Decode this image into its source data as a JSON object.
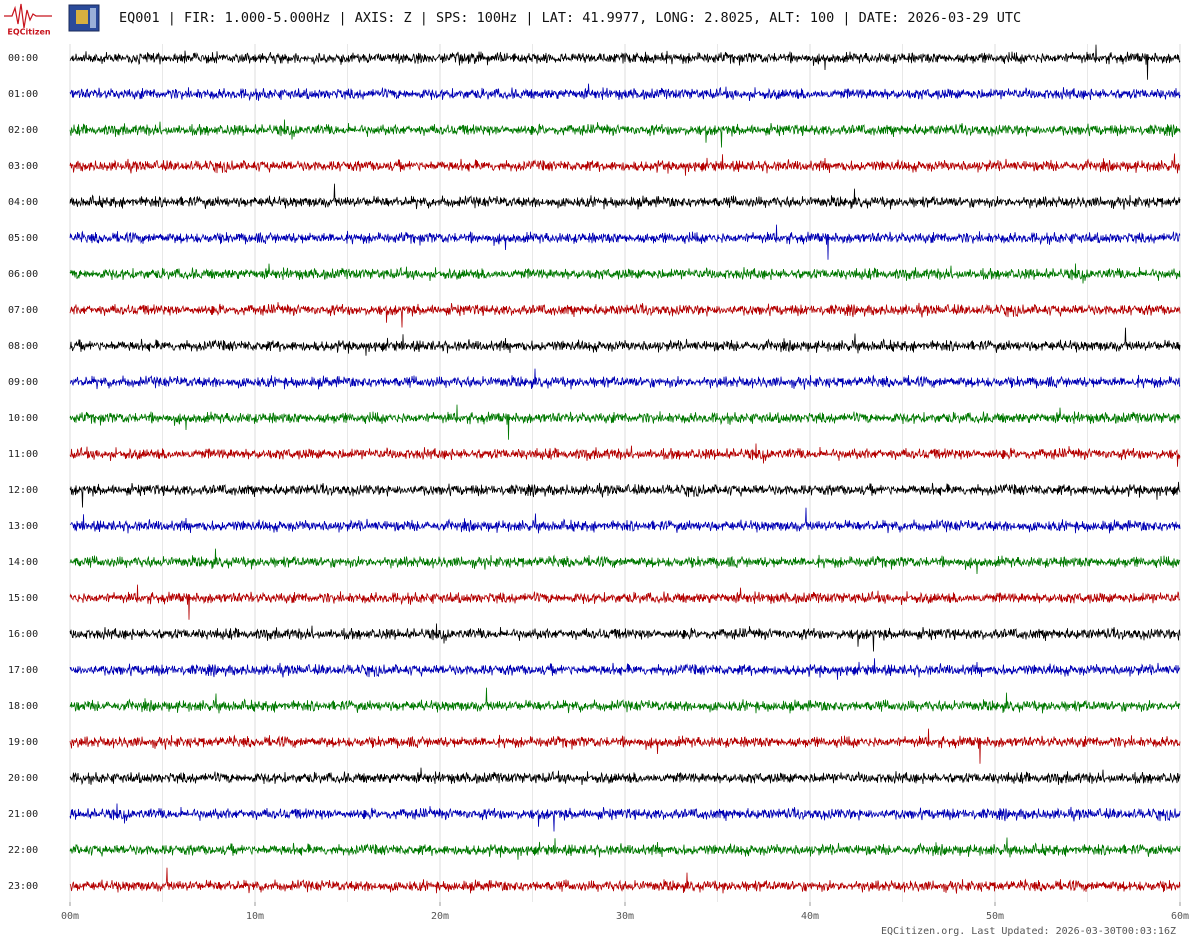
{
  "chart_data": {
    "type": "seismogram",
    "title": "EQ001 | FIR: 1.000-5.000Hz | AXIS: Z | SPS: 100Hz | LAT: 41.9977, LONG: 2.8025, ALT: 100 | DATE: 2026-03-29 UTC",
    "logo_text": "EQCitizen",
    "footer": "EQCitizen.org. Last Updated: 2026-03-30T00:03:16Z",
    "categories": [
      "00:00",
      "01:00",
      "02:00",
      "03:00",
      "04:00",
      "05:00",
      "06:00",
      "07:00",
      "08:00",
      "09:00",
      "10:00",
      "11:00",
      "12:00",
      "13:00",
      "14:00",
      "15:00",
      "16:00",
      "17:00",
      "18:00",
      "19:00",
      "20:00",
      "21:00",
      "22:00",
      "23:00"
    ],
    "trace_colors": [
      "#000000",
      "#0000b4",
      "#007800",
      "#b40000"
    ],
    "xlim": [
      0,
      60
    ],
    "xticks": [
      {
        "value": 0,
        "label": "00m"
      },
      {
        "value": 10,
        "label": "10m"
      },
      {
        "value": 20,
        "label": "20m"
      },
      {
        "value": 30,
        "label": "30m"
      },
      {
        "value": 40,
        "label": "40m"
      },
      {
        "value": 50,
        "label": "50m"
      },
      {
        "value": 60,
        "label": "60m"
      }
    ],
    "grid": true
  }
}
